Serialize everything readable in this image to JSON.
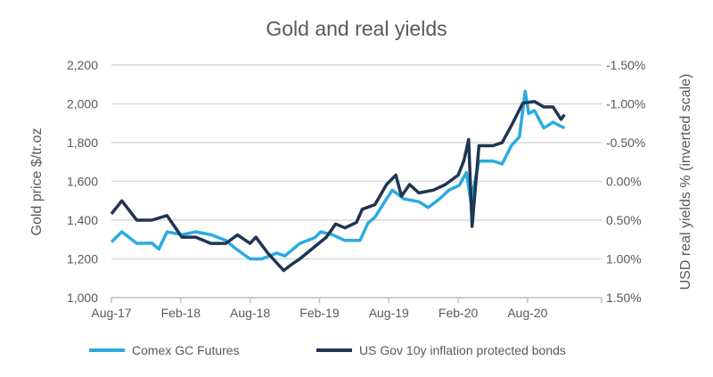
{
  "chart_data": {
    "type": "line",
    "title": "Gold and real yields",
    "ylabel": "Gold price $/tr.oz",
    "y2label": "USD real yields % (inverted scale)",
    "xlabel": "",
    "x_unit": "months since Aug-17",
    "xlim": [
      0,
      39.3
    ],
    "x_ticks": [
      {
        "m": 0,
        "label": "Aug-17"
      },
      {
        "m": 6,
        "label": "Feb-18"
      },
      {
        "m": 12,
        "label": "Aug-18"
      },
      {
        "m": 18,
        "label": "Feb-19"
      },
      {
        "m": 24,
        "label": "Aug-19"
      },
      {
        "m": 30,
        "label": "Feb-20"
      },
      {
        "m": 36,
        "label": "Aug-20"
      }
    ],
    "ylim": [
      1000,
      2200
    ],
    "y_ticks": [
      {
        "v": 2200,
        "label": "2,200"
      },
      {
        "v": 2000,
        "label": "2,000"
      },
      {
        "v": 1800,
        "label": "1,800"
      },
      {
        "v": 1600,
        "label": "1,600"
      },
      {
        "v": 1400,
        "label": "1,400"
      },
      {
        "v": 1200,
        "label": "1,200"
      },
      {
        "v": 1000,
        "label": "1,000"
      }
    ],
    "y2lim": [
      -1.5,
      1.5
    ],
    "y2_inverted": true,
    "y2_ticks": [
      {
        "v": -1.5,
        "label": "-1.50%"
      },
      {
        "v": -1.0,
        "label": "-1.00%"
      },
      {
        "v": -0.5,
        "label": "-0.50%"
      },
      {
        "v": 0.0,
        "label": "0.00%"
      },
      {
        "v": 0.5,
        "label": "0.50%"
      },
      {
        "v": 1.0,
        "label": "1.00%"
      },
      {
        "v": 1.5,
        "label": "1.50%"
      }
    ],
    "grid": true,
    "legend_position": "bottom",
    "series": [
      {
        "name": "Comex GC Futures",
        "axis": "left",
        "color": "#29abe2",
        "points": [
          [
            0,
            1287
          ],
          [
            0.9,
            1340
          ],
          [
            2.2,
            1280
          ],
          [
            3.5,
            1282
          ],
          [
            4.1,
            1250
          ],
          [
            4.8,
            1340
          ],
          [
            6.1,
            1325
          ],
          [
            7.3,
            1340
          ],
          [
            8.6,
            1325
          ],
          [
            9.9,
            1295
          ],
          [
            10.7,
            1255
          ],
          [
            12,
            1200
          ],
          [
            13,
            1200
          ],
          [
            14.3,
            1230
          ],
          [
            15,
            1215
          ],
          [
            16.3,
            1280
          ],
          [
            17.6,
            1310
          ],
          [
            18.1,
            1340
          ],
          [
            19.1,
            1325
          ],
          [
            20.2,
            1295
          ],
          [
            21.5,
            1295
          ],
          [
            22.2,
            1385
          ],
          [
            22.8,
            1415
          ],
          [
            23.8,
            1510
          ],
          [
            24.3,
            1555
          ],
          [
            25.3,
            1510
          ],
          [
            26.6,
            1495
          ],
          [
            27.4,
            1465
          ],
          [
            28.4,
            1510
          ],
          [
            29.2,
            1555
          ],
          [
            30.1,
            1580
          ],
          [
            30.7,
            1645
          ],
          [
            31.1,
            1495
          ],
          [
            31.8,
            1705
          ],
          [
            33,
            1705
          ],
          [
            33.8,
            1690
          ],
          [
            34.6,
            1785
          ],
          [
            35.3,
            1830
          ],
          [
            35.8,
            2065
          ],
          [
            36.1,
            1950
          ],
          [
            36.6,
            1965
          ],
          [
            37.4,
            1875
          ],
          [
            38.2,
            1905
          ],
          [
            39.2,
            1875
          ]
        ]
      },
      {
        "name": "US Gov 10y inflation protected bonds",
        "axis": "right",
        "color": "#1f3552",
        "points": [
          [
            0,
            0.42
          ],
          [
            0.9,
            0.25
          ],
          [
            2.2,
            0.5
          ],
          [
            3.5,
            0.5
          ],
          [
            4.8,
            0.44
          ],
          [
            6.1,
            0.72
          ],
          [
            7.3,
            0.72
          ],
          [
            8.6,
            0.8
          ],
          [
            9.9,
            0.8
          ],
          [
            10.9,
            0.69
          ],
          [
            12,
            0.8
          ],
          [
            12.5,
            0.72
          ],
          [
            13.5,
            0.92
          ],
          [
            14.9,
            1.15
          ],
          [
            15.6,
            1.07
          ],
          [
            16.3,
            1.0
          ],
          [
            17.6,
            0.84
          ],
          [
            18.6,
            0.72
          ],
          [
            19.4,
            0.55
          ],
          [
            20.2,
            0.6
          ],
          [
            21.2,
            0.53
          ],
          [
            21.7,
            0.36
          ],
          [
            22.8,
            0.3
          ],
          [
            23.8,
            0.04
          ],
          [
            24.6,
            -0.08
          ],
          [
            25.1,
            0.19
          ],
          [
            25.8,
            0.04
          ],
          [
            26.6,
            0.15
          ],
          [
            27.9,
            0.11
          ],
          [
            28.9,
            0.04
          ],
          [
            30,
            -0.08
          ],
          [
            30.5,
            -0.27
          ],
          [
            30.9,
            -0.54
          ],
          [
            31.2,
            0.58
          ],
          [
            31.8,
            -0.46
          ],
          [
            33,
            -0.46
          ],
          [
            33.8,
            -0.5
          ],
          [
            34.6,
            -0.72
          ],
          [
            35.6,
            -1.01
          ],
          [
            36.6,
            -1.03
          ],
          [
            37.4,
            -0.96
          ],
          [
            38.2,
            -0.96
          ],
          [
            38.9,
            -0.8
          ],
          [
            39.2,
            -0.86
          ]
        ]
      }
    ]
  }
}
